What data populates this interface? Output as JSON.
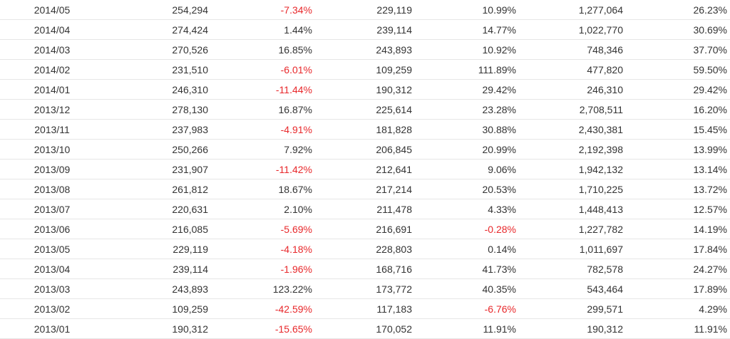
{
  "table": {
    "accent_negative": "#e8282b",
    "rows": [
      [
        "2014/05",
        "254,294",
        "-7.34%",
        "229,119",
        "10.99%",
        "1,277,064",
        "26.23%"
      ],
      [
        "2014/04",
        "274,424",
        "1.44%",
        "239,114",
        "14.77%",
        "1,022,770",
        "30.69%"
      ],
      [
        "2014/03",
        "270,526",
        "16.85%",
        "243,893",
        "10.92%",
        "748,346",
        "37.70%"
      ],
      [
        "2014/02",
        "231,510",
        "-6.01%",
        "109,259",
        "111.89%",
        "477,820",
        "59.50%"
      ],
      [
        "2014/01",
        "246,310",
        "-11.44%",
        "190,312",
        "29.42%",
        "246,310",
        "29.42%"
      ],
      [
        "2013/12",
        "278,130",
        "16.87%",
        "225,614",
        "23.28%",
        "2,708,511",
        "16.20%"
      ],
      [
        "2013/11",
        "237,983",
        "-4.91%",
        "181,828",
        "30.88%",
        "2,430,381",
        "15.45%"
      ],
      [
        "2013/10",
        "250,266",
        "7.92%",
        "206,845",
        "20.99%",
        "2,192,398",
        "13.99%"
      ],
      [
        "2013/09",
        "231,907",
        "-11.42%",
        "212,641",
        "9.06%",
        "1,942,132",
        "13.14%"
      ],
      [
        "2013/08",
        "261,812",
        "18.67%",
        "217,214",
        "20.53%",
        "1,710,225",
        "13.72%"
      ],
      [
        "2013/07",
        "220,631",
        "2.10%",
        "211,478",
        "4.33%",
        "1,448,413",
        "12.57%"
      ],
      [
        "2013/06",
        "216,085",
        "-5.69%",
        "216,691",
        "-0.28%",
        "1,227,782",
        "14.19%"
      ],
      [
        "2013/05",
        "229,119",
        "-4.18%",
        "228,803",
        "0.14%",
        "1,011,697",
        "17.84%"
      ],
      [
        "2013/04",
        "239,114",
        "-1.96%",
        "168,716",
        "41.73%",
        "782,578",
        "24.27%"
      ],
      [
        "2013/03",
        "243,893",
        "123.22%",
        "173,772",
        "40.35%",
        "543,464",
        "17.89%"
      ],
      [
        "2013/02",
        "109,259",
        "-42.59%",
        "117,183",
        "-6.76%",
        "299,571",
        "4.29%"
      ],
      [
        "2013/01",
        "190,312",
        "-15.65%",
        "170,052",
        "11.91%",
        "190,312",
        "11.91%"
      ]
    ]
  }
}
